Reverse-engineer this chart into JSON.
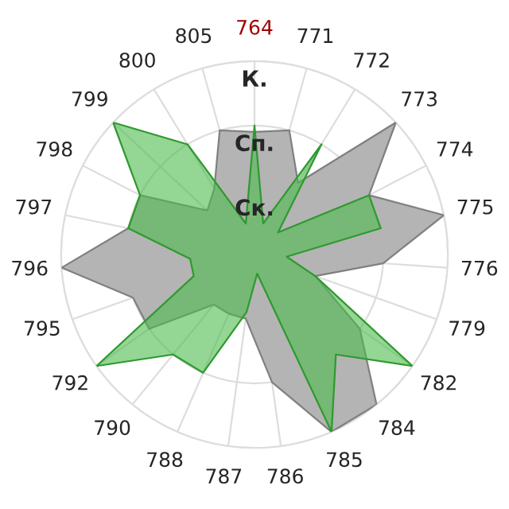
{
  "chart_data": {
    "type": "radar",
    "categories": [
      "764",
      "771",
      "772",
      "773",
      "774",
      "775",
      "776",
      "779",
      "782",
      "784",
      "785",
      "786",
      "787",
      "788",
      "790",
      "792",
      "795",
      "796",
      "797",
      "798",
      "799",
      "800",
      "805"
    ],
    "series": [
      {
        "color": "#b4b4b4",
        "values": [
          1.9,
          2,
          1.3,
          3,
          2,
          3,
          2,
          1,
          2,
          3,
          3,
          2,
          1,
          1,
          1,
          2,
          2,
          3,
          2,
          2,
          1,
          1.2,
          2
        ]
      },
      {
        "color": "#4cbb4c",
        "values": [
          2,
          0.5,
          2,
          0.5,
          2,
          2,
          0.5,
          1,
          3,
          2,
          3,
          0.3,
          0.9,
          2,
          2,
          3,
          1,
          1,
          2,
          2,
          3,
          2,
          0.5
        ]
      }
    ],
    "ylim": [
      0,
      3
    ],
    "yticks": [
      {
        "value": 1,
        "label": "Ск."
      },
      {
        "value": 2,
        "label": "Сп."
      },
      {
        "value": 3,
        "label": "К."
      }
    ],
    "grid": true
  }
}
